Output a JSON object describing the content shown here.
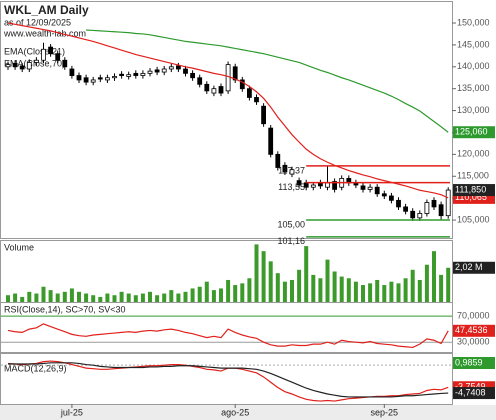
{
  "chart_data": [
    {
      "type": "candlestick",
      "title": "WKL_AM Daily",
      "subtitle": "as of 12/09/2025",
      "source": "www.wealth-lab.com",
      "ylim": [
        100.9,
        154.8
      ],
      "yticks": [
        {
          "value": 105,
          "label": "105,000"
        },
        {
          "value": 110,
          "label": "110,000"
        },
        {
          "value": 115,
          "label": "115,000"
        },
        {
          "value": 120,
          "label": "120,000"
        },
        {
          "value": 125,
          "label": "125,000"
        },
        {
          "value": 130,
          "label": "130,000"
        },
        {
          "value": 135,
          "label": "135,000"
        },
        {
          "value": 140,
          "label": "140,000"
        },
        {
          "value": 145,
          "label": "145,000"
        },
        {
          "value": 150,
          "label": "150,000"
        }
      ],
      "open": [
        140,
        140.8,
        140.2,
        139.5,
        141,
        141.5,
        144.5,
        143,
        141.5,
        139.5,
        138,
        137.5,
        136.5,
        137.5,
        137,
        137.5,
        138.3,
        137.8,
        138.5,
        138,
        138.5,
        139.3,
        138.8,
        139.5,
        140.2,
        139.5,
        138.5,
        137.5,
        136,
        134,
        135.5,
        134.5,
        140,
        137,
        135,
        133,
        131,
        126,
        120,
        117.5,
        115.5,
        114,
        113.5,
        112.5,
        113.5,
        112.5,
        113.8,
        112.5,
        114.5,
        113.5,
        112.8,
        112,
        112.5,
        111,
        110.5,
        109.5,
        108,
        107,
        105.5,
        106.5,
        109.5,
        108.5,
        106
      ],
      "high": [
        141.2,
        141.5,
        140.9,
        141.7,
        142.2,
        145.5,
        145.2,
        143.7,
        142.2,
        140.2,
        138.7,
        138.2,
        137.7,
        138.2,
        138.2,
        138.5,
        139,
        138.9,
        139.2,
        139.2,
        139.7,
        140,
        140.2,
        140.7,
        140.9,
        140.2,
        139.2,
        138.2,
        136.7,
        135.7,
        136.2,
        141.2,
        140.7,
        137.7,
        135.7,
        133.7,
        131.7,
        126.7,
        120.7,
        118.2,
        117.2,
        114.7,
        114.2,
        113.7,
        114.2,
        117.4,
        114.5,
        115.2,
        115.2,
        114.2,
        113.5,
        113.2,
        113.2,
        111.7,
        111.2,
        110.2,
        108.7,
        107.7,
        107.2,
        109.7,
        110.2,
        109.2,
        112.5
      ],
      "low": [
        139.3,
        139.3,
        138.8,
        138.8,
        140.3,
        140.8,
        142.3,
        140.8,
        139.3,
        137.3,
        136.3,
        135.8,
        135.8,
        136.5,
        136.3,
        136.8,
        137.3,
        137.1,
        137.3,
        137.3,
        137.8,
        138.1,
        138.1,
        138.8,
        138.8,
        137.8,
        136.8,
        135.3,
        133.8,
        133.3,
        133.3,
        133.8,
        136.3,
        134.3,
        132.3,
        131.3,
        126.3,
        119.3,
        116.3,
        115.3,
        114.8,
        112.3,
        111.8,
        111.8,
        112.1,
        111.8,
        111.3,
        111.8,
        112.8,
        112.3,
        111.3,
        111.3,
        110.3,
        109.8,
        108.8,
        107.3,
        106.3,
        104.8,
        104.8,
        105.8,
        107.3,
        105,
        105.3
      ],
      "close": [
        140.5,
        140,
        139.5,
        141,
        141.5,
        144,
        143,
        141.5,
        140,
        138,
        137,
        136.5,
        137,
        137.2,
        137.5,
        137.8,
        138,
        138.2,
        138,
        138.5,
        139,
        138.8,
        139.5,
        140,
        139.5,
        138.5,
        137.5,
        136,
        134.5,
        135,
        134,
        140.5,
        137,
        135,
        133,
        132,
        127,
        120,
        117,
        116,
        116.5,
        113,
        112.5,
        113,
        112.8,
        113.5,
        112,
        114.5,
        113.5,
        113,
        112,
        112.5,
        111,
        110.5,
        109.5,
        108,
        107,
        105.5,
        106.5,
        109,
        108,
        106,
        111.85
      ],
      "close_label": "111,850",
      "series": [
        {
          "name": "EMA(Close,21)",
          "color": "#e0201b",
          "last_label": "110,065",
          "values": [
            150,
            149.7,
            149.4,
            149.1,
            148.8,
            148.5,
            148.2,
            147.8,
            147.4,
            147,
            146.6,
            146.2,
            145.8,
            145.3,
            144.8,
            144.3,
            143.8,
            143.3,
            142.8,
            142.4,
            142,
            141.6,
            141.2,
            140.8,
            140.4,
            140,
            139.7,
            139.3,
            138.9,
            138.5,
            138.2,
            137.8,
            137.2,
            136.5,
            135.5,
            134.3,
            132.8,
            130.8,
            128.5,
            126.5,
            124.5,
            122.8,
            121.2,
            120,
            119,
            118.2,
            117.5,
            116.9,
            116.3,
            115.8,
            115.3,
            114.9,
            114.4,
            114,
            113.6,
            113.2,
            112.8,
            112.3,
            111.8,
            111.5,
            111.2,
            110.8,
            110.065
          ]
        },
        {
          "name": "EMA(Close,70)",
          "color": "#2e9a2e",
          "last_label": "125,060",
          "values": [
            null,
            null,
            null,
            null,
            null,
            null,
            null,
            null,
            null,
            null,
            null,
            148.4,
            148.3,
            148.2,
            148.1,
            148,
            147.9,
            147.8,
            147.6,
            147.5,
            147.3,
            147,
            146.7,
            146.4,
            146.1,
            145.8,
            145.6,
            145.4,
            145.2,
            145,
            144.8,
            144.5,
            144.2,
            143.9,
            143.6,
            143.3,
            143,
            142.6,
            142.2,
            141.8,
            141.4,
            141,
            140.4,
            139.8,
            139.2,
            138.7,
            138.1,
            137.5,
            137,
            136.4,
            135.8,
            135.2,
            134.6,
            134,
            133.3,
            132.5,
            131.6,
            130.8,
            129.9,
            128.7,
            127.5,
            126.3,
            125.06
          ]
        }
      ],
      "levels": [
        {
          "value": 117.37,
          "label": "117,37",
          "color": "#e0201b"
        },
        {
          "value": 113.55,
          "label": "113,55",
          "color": "#e0201b"
        },
        {
          "value": 105.0,
          "label": "105,00",
          "color": "#2e9a2e"
        },
        {
          "value": 101.16,
          "label": "101,16",
          "color": "#2e9a2e"
        }
      ]
    },
    {
      "type": "bar",
      "title": "Volume",
      "color": "#3c9a2a",
      "ylim": [
        0,
        3.6
      ],
      "last_label": "2,02 M",
      "values": [
        0.4,
        0.5,
        0.3,
        0.6,
        0.5,
        0.9,
        0.7,
        0.5,
        0.6,
        0.8,
        0.6,
        0.5,
        0.4,
        0.3,
        0.5,
        0.4,
        0.6,
        0.5,
        0.4,
        0.5,
        0.6,
        0.4,
        0.5,
        0.7,
        0.5,
        0.6,
        0.8,
        0.9,
        1.2,
        0.7,
        0.8,
        1.3,
        1,
        1.1,
        1.4,
        3.4,
        3,
        2.4,
        1.7,
        1.2,
        1.3,
        1.9,
        3.3,
        1.6,
        1.4,
        2.5,
        1.8,
        1.5,
        1.4,
        1.2,
        1,
        1.1,
        1.3,
        1,
        1.2,
        1.1,
        1.4,
        1.9,
        1.3,
        2.2,
        3,
        1.6,
        2.02
      ]
    },
    {
      "type": "line",
      "title": "RSI(Close,14), SC>70, SV<30",
      "ylim": [
        15,
        90
      ],
      "yticks": [
        {
          "value": 70,
          "label": "70,0000"
        },
        {
          "value": 30,
          "label": "30,0000"
        }
      ],
      "series": [
        {
          "color": "#e0201b",
          "last_label": "47,4536",
          "values": [
            48,
            46,
            45,
            50,
            52,
            58,
            54,
            50,
            46,
            42,
            40,
            39,
            41,
            42,
            43,
            44,
            45,
            46,
            45,
            47,
            48,
            47,
            49,
            50,
            48,
            45,
            43,
            40,
            37,
            39,
            37,
            50,
            45,
            41,
            38,
            36,
            30,
            26,
            24,
            24,
            26,
            25,
            25,
            27,
            27,
            30,
            27,
            33,
            31,
            30,
            29,
            31,
            28,
            27,
            26,
            24,
            23,
            22,
            27,
            35,
            33,
            28,
            47.4536
          ]
        }
      ]
    },
    {
      "type": "line",
      "title": "MACD(12,26,9)",
      "ylim": [
        -6.6,
        1.9
      ],
      "annotation": "0,9859",
      "categories": [
        null,
        null,
        null,
        null,
        null,
        null,
        null,
        null,
        null,
        "jul-25",
        null,
        null,
        null,
        null,
        null,
        null,
        null,
        null,
        null,
        null,
        null,
        null,
        null,
        null,
        null,
        null,
        null,
        null,
        null,
        null,
        null,
        null,
        "ago-25",
        null,
        null,
        null,
        null,
        null,
        null,
        null,
        null,
        null,
        null,
        null,
        null,
        null,
        null,
        null,
        null,
        null,
        null,
        null,
        null,
        "sep-25",
        null,
        null,
        null,
        null,
        null,
        null,
        null,
        null,
        null
      ],
      "series": [
        {
          "color": "#e0201b",
          "last_label": "-3,7549",
          "values": [
            0.3,
            0.2,
            0.1,
            0.2,
            0.3,
            0.6,
            0.7,
            0.6,
            0.4,
            0.1,
            -0.2,
            -0.5,
            -0.6,
            -0.7,
            -0.7,
            -0.6,
            -0.5,
            -0.4,
            -0.3,
            -0.2,
            -0.1,
            -0.1,
            0,
            0.1,
            0.1,
            0,
            -0.2,
            -0.4,
            -0.7,
            -0.8,
            -1,
            -0.5,
            -0.5,
            -0.7,
            -1,
            -1.3,
            -2,
            -2.9,
            -3.8,
            -4.5,
            -4.9,
            -5.4,
            -5.8,
            -6,
            -6.1,
            -6,
            -6.1,
            -5.9,
            -5.7,
            -5.6,
            -5.5,
            -5.4,
            -5.3,
            -5.3,
            -5.2,
            -5.2,
            -5,
            -4.9,
            -4.8,
            -4.3,
            -4.1,
            -4.2,
            -3.7549
          ]
        },
        {
          "color": "#222222",
          "last_label": "-4,7408",
          "values": [
            0.2,
            0.2,
            0.2,
            0.2,
            0.2,
            0.3,
            0.4,
            0.4,
            0.4,
            0.4,
            0.3,
            0.1,
            0,
            -0.2,
            -0.3,
            -0.4,
            -0.4,
            -0.4,
            -0.4,
            -0.4,
            -0.3,
            -0.3,
            -0.2,
            -0.2,
            -0.1,
            -0.1,
            -0.1,
            -0.2,
            -0.3,
            -0.4,
            -0.5,
            -0.5,
            -0.5,
            -0.5,
            -0.6,
            -0.7,
            -1,
            -1.4,
            -1.9,
            -2.4,
            -2.9,
            -3.4,
            -3.9,
            -4.3,
            -4.6,
            -4.9,
            -5.1,
            -5.3,
            -5.4,
            -5.4,
            -5.4,
            -5.4,
            -5.4,
            -5.4,
            -5.4,
            -5.3,
            -5.2,
            -5.2,
            -5.1,
            -5,
            -4.9,
            -4.8,
            -4.7408
          ]
        }
      ]
    }
  ]
}
